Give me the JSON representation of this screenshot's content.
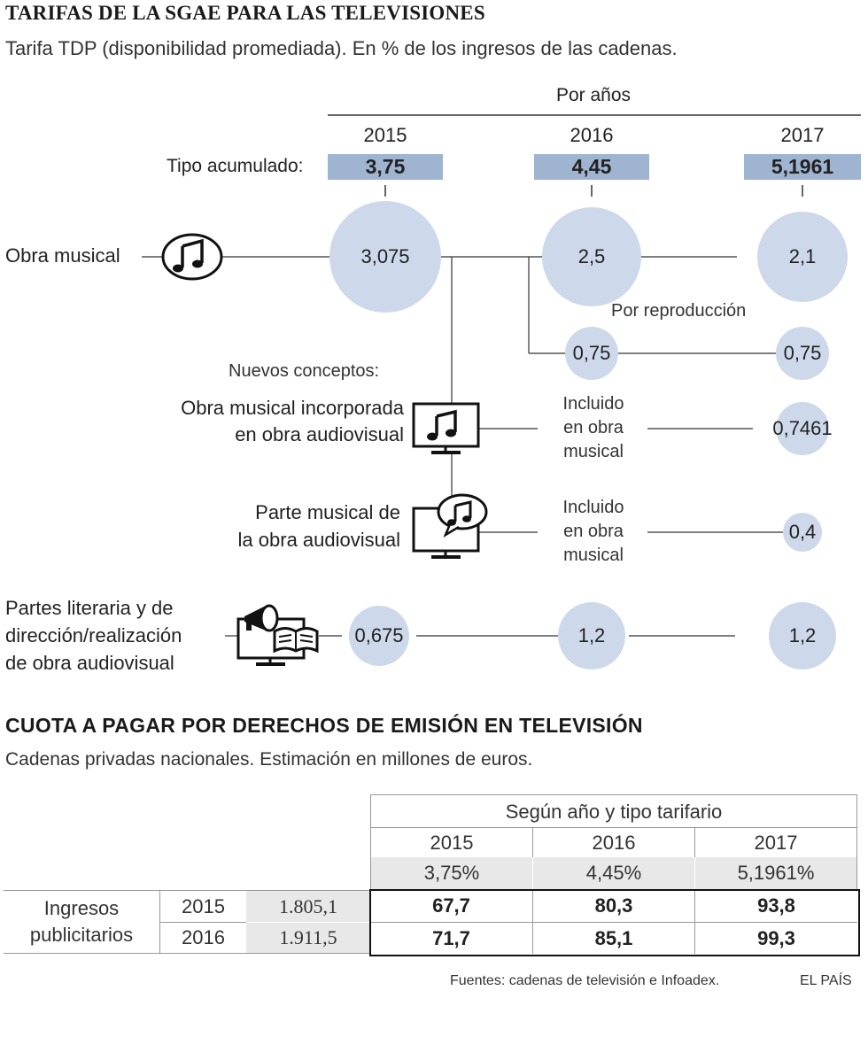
{
  "diagram": {
    "title": "TARIFAS DE LA SGAE PARA LAS TELEVISIONES",
    "subtitle": "Tarifa TDP (disponibilidad promediada). En % de los ingresos de las cadenas.",
    "years_header": "Por años",
    "years": [
      "2015",
      "2016",
      "2017"
    ],
    "tipo_label": "Tipo acumulado:",
    "tipo_values": [
      "3,75",
      "4,45",
      "5,1961"
    ],
    "obra_musical": {
      "label": "Obra musical",
      "values": [
        "3,075",
        "2,5",
        "2,1"
      ]
    },
    "por_reproduccion": {
      "label": "Por reproducción",
      "values": [
        "0,75",
        "0,75"
      ]
    },
    "nuevos_conceptos": "Nuevos conceptos:",
    "incorporada": {
      "label_line1": "Obra musical incorporada",
      "label_line2": "en obra audiovisual",
      "value_2016": [
        "Incluido",
        "en obra",
        "musical"
      ],
      "value_2017": "0,7461"
    },
    "parte_musical": {
      "label_line1": "Parte musical de",
      "label_line2": "la obra audiovisual",
      "value_2016": [
        "Incluido",
        "en obra",
        "musical"
      ],
      "value_2017": "0,4"
    },
    "literaria": {
      "label_line1": "Partes literaria y de",
      "label_line2": "dirección/realización",
      "label_line3": "de obra audiovisual",
      "values": [
        "0,675",
        "1,2",
        "1,2"
      ]
    },
    "colors": {
      "circle": "#cdd9ea",
      "tipo_bar": "#9fb4d1",
      "line": "#333333"
    },
    "icons": [
      "music-note-icon",
      "tv-music-icon",
      "tv-music-speech-icon",
      "tv-megaphone-book-icon"
    ]
  },
  "table": {
    "title": "CUOTA A PAGAR POR DERECHOS DE EMISIÓN EN TELEVISIÓN",
    "subtitle": "Cadenas privadas nacionales. Estimación en millones de euros.",
    "group_header": "Según año y tipo tarifario",
    "years": [
      "2015",
      "2016",
      "2017"
    ],
    "rates": [
      "3,75%",
      "4,45%",
      "5,1961%"
    ],
    "row_group_label_line1": "Ingresos",
    "row_group_label_line2": "publicitarios",
    "rows": [
      {
        "year": "2015",
        "ingresos": "1.805,1",
        "values": [
          "67,7",
          "80,3",
          "93,8"
        ]
      },
      {
        "year": "2016",
        "ingresos": "1.911,5",
        "values": [
          "71,7",
          "85,1",
          "99,3"
        ]
      }
    ]
  },
  "footer": {
    "sources": "Fuentes: cadenas de televisión e Infoadex.",
    "brand": "EL PAÍS"
  }
}
